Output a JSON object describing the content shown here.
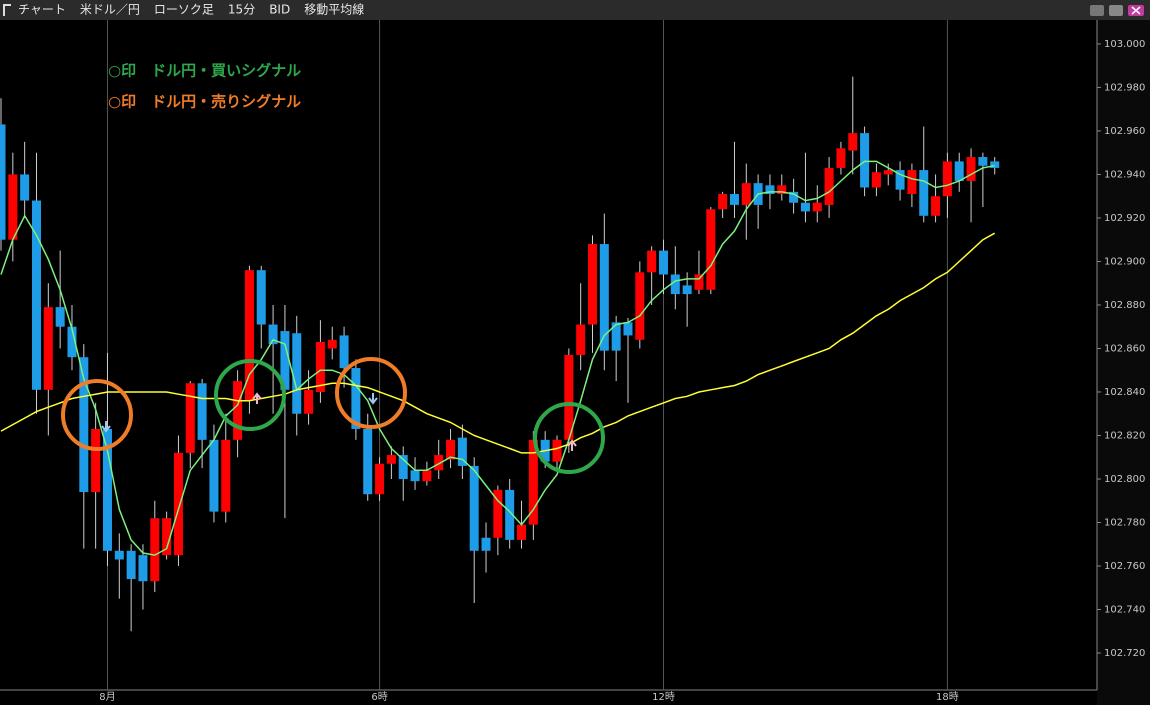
{
  "window": {
    "title_items": [
      "チャート",
      "米ドル／円",
      "ローソク足",
      "15分",
      "BID",
      "移動平均線"
    ]
  },
  "chart_data": {
    "type": "candlestick",
    "annotations": [
      {
        "text": "○印　ドル円・買いシグナル",
        "color": "#2ea84a"
      },
      {
        "text": "○印　ドル円・売りシグナル",
        "color": "#f07c28"
      }
    ],
    "categories": [
      null,
      null,
      null,
      null,
      null,
      null,
      null,
      null,
      null,
      "8月",
      null,
      null,
      null,
      null,
      null,
      null,
      null,
      null,
      null,
      null,
      null,
      null,
      null,
      null,
      null,
      null,
      null,
      null,
      null,
      null,
      null,
      null,
      "6時",
      null,
      null,
      null,
      null,
      null,
      null,
      null,
      null,
      null,
      null,
      null,
      null,
      null,
      null,
      null,
      null,
      null,
      null,
      null,
      null,
      null,
      null,
      null,
      "12時",
      null,
      null,
      null,
      null,
      null,
      null,
      null,
      null,
      null,
      null,
      null,
      null,
      null,
      null,
      null,
      null,
      null,
      null,
      null,
      null,
      null,
      null,
      null,
      "18時",
      null,
      null,
      null,
      null
    ],
    "open": [
      102.963,
      102.91,
      102.94,
      102.928,
      102.841,
      102.879,
      102.87,
      102.856,
      102.794,
      102.823,
      102.767,
      102.767,
      102.765,
      102.753,
      102.765,
      102.765,
      102.812,
      102.844,
      102.818,
      102.785,
      102.818,
      102.836,
      102.896,
      102.871,
      102.868,
      102.867,
      102.83,
      102.84,
      102.86,
      102.866,
      102.851,
      102.823,
      102.793,
      102.807,
      102.811,
      102.804,
      102.799,
      102.804,
      102.809,
      102.819,
      102.806,
      102.773,
      102.773,
      102.795,
      102.772,
      102.779,
      102.818,
      102.808,
      102.818,
      102.857,
      102.871,
      102.908,
      102.872,
      102.872,
      102.864,
      102.895,
      102.905,
      102.894,
      102.889,
      102.887,
      102.887,
      102.924,
      102.931,
      102.926,
      102.936,
      102.935,
      102.931,
      102.932,
      102.927,
      102.923,
      102.926,
      102.943,
      102.951,
      102.959,
      102.934,
      102.94,
      102.942,
      102.931,
      102.942,
      102.921,
      102.93,
      102.946,
      102.937,
      102.948,
      102.946
    ],
    "high": [
      102.975,
      102.95,
      102.955,
      102.95,
      102.89,
      102.905,
      102.88,
      102.862,
      102.835,
      102.858,
      102.775,
      102.77,
      102.77,
      102.79,
      102.785,
      102.82,
      102.845,
      102.846,
      102.825,
      102.83,
      102.85,
      102.898,
      102.898,
      102.88,
      102.88,
      102.875,
      102.85,
      102.873,
      102.87,
      102.87,
      102.855,
      102.83,
      102.81,
      102.815,
      102.815,
      102.81,
      102.808,
      102.818,
      102.823,
      102.825,
      102.81,
      102.78,
      102.797,
      102.8,
      102.79,
      102.822,
      102.822,
      102.82,
      102.86,
      102.89,
      102.912,
      102.922,
      102.875,
      102.874,
      102.9,
      102.907,
      102.91,
      102.907,
      102.895,
      102.905,
      102.925,
      102.932,
      102.955,
      102.945,
      102.94,
      102.94,
      102.94,
      102.938,
      102.95,
      102.935,
      102.948,
      102.955,
      102.985,
      102.962,
      102.945,
      102.945,
      102.946,
      102.945,
      102.962,
      102.94,
      102.95,
      102.95,
      102.952,
      102.95,
      102.948
    ],
    "low": [
      102.905,
      102.9,
      102.92,
      102.83,
      102.82,
      102.86,
      102.85,
      102.768,
      102.768,
      102.76,
      102.745,
      102.73,
      102.74,
      102.748,
      102.763,
      102.76,
      102.805,
      102.805,
      102.78,
      102.78,
      102.81,
      102.83,
      102.86,
      102.83,
      102.782,
      102.82,
      102.825,
      102.835,
      102.855,
      102.842,
      102.818,
      102.79,
      102.79,
      102.8,
      102.79,
      102.795,
      102.797,
      102.8,
      102.805,
      102.8,
      102.743,
      102.757,
      102.765,
      102.768,
      102.768,
      102.772,
      102.805,
      102.804,
      102.812,
      102.85,
      102.858,
      102.85,
      102.845,
      102.835,
      102.86,
      102.88,
      102.885,
      102.878,
      102.87,
      102.885,
      102.885,
      102.92,
      102.92,
      102.91,
      102.915,
      102.924,
      102.928,
      102.922,
      102.918,
      102.918,
      102.92,
      102.94,
      102.94,
      102.93,
      102.93,
      102.935,
      102.928,
      102.925,
      102.918,
      102.918,
      102.92,
      102.932,
      102.918,
      102.925,
      102.94
    ],
    "close": [
      102.91,
      102.94,
      102.928,
      102.841,
      102.879,
      102.87,
      102.856,
      102.794,
      102.823,
      102.767,
      102.763,
      102.754,
      102.753,
      102.782,
      102.782,
      102.812,
      102.844,
      102.818,
      102.785,
      102.818,
      102.845,
      102.896,
      102.871,
      102.862,
      102.841,
      102.83,
      102.841,
      102.863,
      102.864,
      102.851,
      102.823,
      102.793,
      102.807,
      102.811,
      102.8,
      102.799,
      102.804,
      102.811,
      102.818,
      102.806,
      102.767,
      102.767,
      102.795,
      102.772,
      102.779,
      102.818,
      102.808,
      102.818,
      102.857,
      102.871,
      102.908,
      102.859,
      102.859,
      102.866,
      102.895,
      102.905,
      102.894,
      102.885,
      102.885,
      102.894,
      102.924,
      102.931,
      102.926,
      102.936,
      102.926,
      102.931,
      102.935,
      102.927,
      102.923,
      102.927,
      102.943,
      102.952,
      102.959,
      102.934,
      102.941,
      102.942,
      102.933,
      102.942,
      102.921,
      102.93,
      102.946,
      102.937,
      102.948,
      102.944,
      102.943
    ],
    "up_color": "#ff0000",
    "down_color": "#1e9ce8",
    "lines": [
      {
        "color": "#7df07d",
        "values": [
          102.894,
          102.91,
          102.921,
          102.912,
          102.901,
          102.887,
          102.869,
          102.846,
          102.832,
          102.813,
          102.786,
          102.772,
          102.766,
          102.765,
          102.768,
          102.786,
          102.804,
          102.811,
          102.818,
          102.829,
          102.834,
          102.848,
          102.855,
          102.864,
          102.862,
          102.841,
          102.846,
          102.85,
          102.85,
          102.848,
          102.843,
          102.836,
          102.823,
          102.814,
          102.809,
          102.804,
          102.804,
          102.807,
          102.81,
          102.809,
          102.804,
          102.797,
          102.79,
          102.785,
          102.779,
          102.786,
          102.795,
          102.802,
          102.818,
          102.836,
          102.855,
          102.866,
          102.871,
          102.872,
          102.875,
          102.882,
          102.887,
          102.891,
          102.892,
          102.892,
          102.898,
          102.908,
          102.914,
          102.924,
          102.931,
          102.932,
          102.932,
          102.931,
          102.928,
          102.929,
          102.932,
          102.937,
          102.942,
          102.946,
          102.946,
          102.943,
          102.94,
          102.938,
          102.937,
          102.934,
          102.935,
          102.937,
          102.94,
          102.943,
          102.944
        ]
      },
      {
        "color": "#ffff33",
        "values": [
          102.822,
          102.825,
          102.828,
          102.831,
          102.833,
          102.835,
          102.837,
          102.838,
          102.839,
          102.84,
          102.84,
          102.84,
          102.84,
          102.84,
          102.84,
          102.839,
          102.838,
          102.837,
          102.837,
          102.837,
          102.836,
          102.836,
          102.837,
          102.838,
          102.839,
          102.841,
          102.842,
          102.843,
          102.844,
          102.844,
          102.843,
          102.842,
          102.84,
          102.838,
          102.836,
          102.833,
          102.83,
          102.828,
          102.826,
          102.823,
          102.82,
          102.818,
          102.816,
          102.814,
          102.812,
          102.812,
          102.813,
          102.814,
          102.816,
          102.819,
          102.821,
          102.824,
          102.826,
          102.829,
          102.831,
          102.833,
          102.835,
          102.837,
          102.838,
          102.84,
          102.841,
          102.842,
          102.843,
          102.845,
          102.848,
          102.85,
          102.852,
          102.854,
          102.856,
          102.858,
          102.86,
          102.864,
          102.867,
          102.871,
          102.875,
          102.878,
          102.882,
          102.885,
          102.888,
          102.892,
          102.895,
          102.9,
          102.905,
          102.91,
          102.913
        ]
      }
    ],
    "ylim": [
      102.703,
      103.011
    ],
    "yticks": [
      {
        "value": 102.72,
        "label": "102.720"
      },
      {
        "value": 102.74,
        "label": "102.740"
      },
      {
        "value": 102.76,
        "label": "102.760"
      },
      {
        "value": 102.78,
        "label": "102.780"
      },
      {
        "value": 102.8,
        "label": "102.800"
      },
      {
        "value": 102.82,
        "label": "102.820"
      },
      {
        "value": 102.84,
        "label": "102.840"
      },
      {
        "value": 102.86,
        "label": "102.860"
      },
      {
        "value": 102.88,
        "label": "102.880"
      },
      {
        "value": 102.9,
        "label": "102.900"
      },
      {
        "value": 102.92,
        "label": "102.920"
      },
      {
        "value": 102.94,
        "label": "102.940"
      },
      {
        "value": 102.96,
        "label": "102.960"
      },
      {
        "value": 102.98,
        "label": "102.980"
      },
      {
        "value": 103,
        "label": "103.000"
      }
    ],
    "grid": false,
    "xgrid": true
  }
}
